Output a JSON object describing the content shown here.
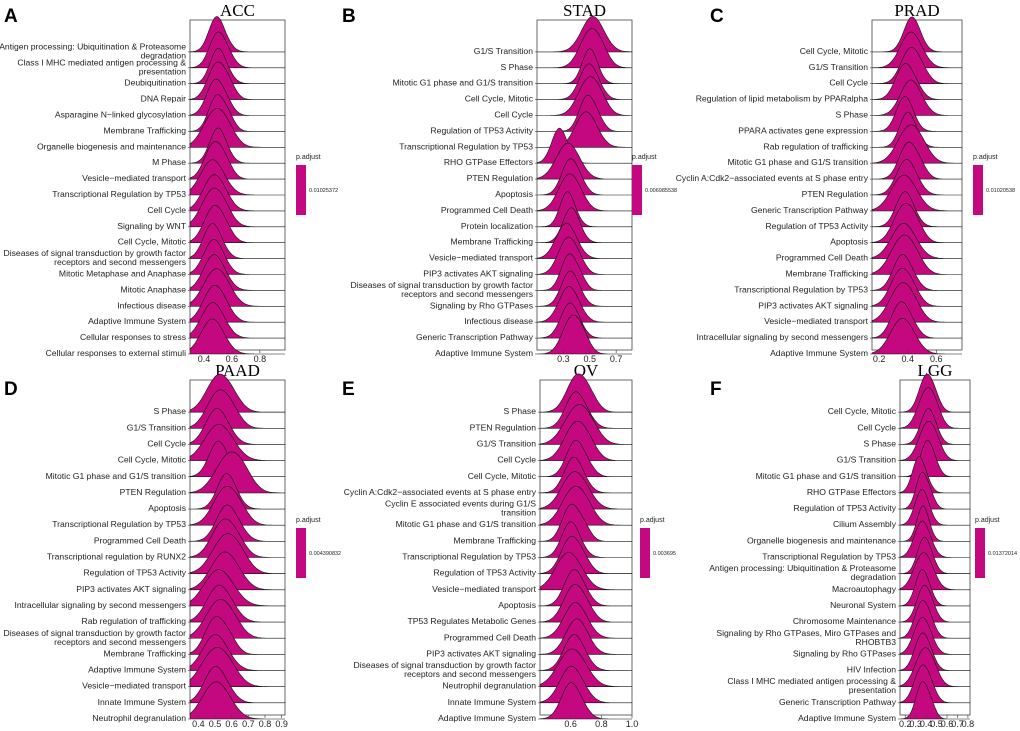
{
  "figure": {
    "fill_color": "#C4087F",
    "panels": [
      {
        "letter": "A",
        "title": "ACC",
        "legend": {
          "title": "p.adjust",
          "value": "0.01025372"
        },
        "chart_data": {
          "type": "ridgeline",
          "title": "ACC",
          "xlim": [
            0.3,
            0.98
          ],
          "xticks": [
            "0.4",
            "0.6",
            "0.8"
          ],
          "xtick_values": [
            0.4,
            0.6,
            0.8
          ],
          "labels": [
            "Antigen processing: Ubiquitination & Proteasome degradation",
            "Class I MHC mediated antigen processing & presentation",
            "Deubiquitination",
            "DNA Repair",
            "Asparagine N−linked glycosylation",
            "Membrane Trafficking",
            "Organelle biogenesis and maintenance",
            "M Phase",
            "Vesicle−mediated transport",
            "Transcriptional Regulation by TP53",
            "Cell Cycle",
            "Signaling by WNT",
            "Cell Cycle, Mitotic",
            "Diseases of signal transduction by growth factor receptors and second messengers",
            "Mitotic Metaphase and Anaphase",
            "Mitotic Anaphase",
            "Infectious disease",
            "Adaptive Immune System",
            "Cellular responses to stress",
            "Cellular responses to external stimuli"
          ],
          "peaks": [
            0.49,
            0.5,
            0.5,
            0.49,
            0.48,
            0.49,
            0.48,
            0.5,
            0.47,
            0.46,
            0.47,
            0.46,
            0.47,
            0.46,
            0.47,
            0.47,
            0.48,
            0.47,
            0.46,
            0.46
          ]
        }
      },
      {
        "letter": "B",
        "title": "STAD",
        "legend": {
          "title": "p.adjust",
          "value": "0.006985538"
        },
        "chart_data": {
          "type": "ridgeline",
          "title": "STAD",
          "xlim": [
            0.1,
            0.82
          ],
          "xticks": [
            "0.3",
            "0.5",
            "0.7"
          ],
          "xtick_values": [
            0.3,
            0.5,
            0.7
          ],
          "labels": [
            "G1/S Transition",
            "S Phase",
            "Mitotic G1 phase and G1/S transition",
            "Cell Cycle, Mitotic",
            "Cell Cycle",
            "Regulation of TP53 Activity",
            "Transcriptional Regulation by TP53",
            "RHO GTPase Effectors",
            "PTEN Regulation",
            "Apoptosis",
            "Programmed Cell Death",
            "Protein localization",
            "Membrane Trafficking",
            "Vesicle−mediated transport",
            "PIP3 activates AKT signaling",
            "Diseases of signal transduction by growth factor receptors and second messengers",
            "Signaling by Rho GTPases",
            "Infectious disease",
            "Generic Transcription Pathway",
            "Adaptive Immune System"
          ],
          "peaks": [
            0.52,
            0.5,
            0.5,
            0.49,
            0.49,
            0.48,
            0.47,
            0.27,
            0.33,
            0.35,
            0.34,
            0.33,
            0.36,
            0.32,
            0.33,
            0.34,
            0.35,
            0.34,
            0.35,
            0.36
          ]
        }
      },
      {
        "letter": "C",
        "title": "PRAD",
        "legend": {
          "title": "p.adjust",
          "value": "0.01020538"
        },
        "chart_data": {
          "type": "ridgeline",
          "title": "PRAD",
          "xlim": [
            0.15,
            0.78
          ],
          "xticks": [
            "0.2",
            "0.4",
            "0.6"
          ],
          "xtick_values": [
            0.2,
            0.4,
            0.6
          ],
          "labels": [
            "Cell Cycle, Mitotic",
            "G1/S Transition",
            "Cell Cycle",
            "Regulation of lipid metabolism by PPARalpha",
            "S Phase",
            "PPARA activates gene expression",
            "Rab regulation of trafficking",
            "Mitotic G1 phase and G1/S transition",
            "Cyclin A:Cdk2−associated events at S phase entry",
            "PTEN Regulation",
            "Generic Transcription Pathway",
            "Regulation of TP53 Activity",
            "Apoptosis",
            "Programmed Cell Death",
            "Membrane Trafficking",
            "Transcriptional Regulation by TP53",
            "PIP3 activates AKT signaling",
            "Vesicle−mediated transport",
            "Intracellular signaling by second messengers",
            "Adaptive Immune System"
          ],
          "peaks": [
            0.43,
            0.42,
            0.42,
            0.38,
            0.42,
            0.38,
            0.4,
            0.41,
            0.4,
            0.39,
            0.37,
            0.38,
            0.37,
            0.37,
            0.36,
            0.36,
            0.35,
            0.35,
            0.35,
            0.36
          ]
        }
      },
      {
        "letter": "D",
        "title": "PAAD",
        "legend": {
          "title": "p.adjust",
          "value": "0.004390832"
        },
        "chart_data": {
          "type": "ridgeline",
          "title": "PAAD",
          "xlim": [
            0.35,
            0.92
          ],
          "xticks": [
            "0.4",
            "0.5",
            "0.6",
            "0.7",
            "0.8",
            "0.9"
          ],
          "xtick_values": [
            0.4,
            0.5,
            0.6,
            0.7,
            0.8,
            0.9
          ],
          "labels": [
            "S Phase",
            "G1/S Transition",
            "Cell Cycle",
            "Cell Cycle, Mitotic",
            "Mitotic G1 phase and G1/S transition",
            "PTEN Regulation",
            "Apoptosis",
            "Transcriptional Regulation by TP53",
            "Programmed Cell Death",
            "Transcriptional regulation by RUNX2",
            "Regulation of TP53 Activity",
            "PIP3 activates AKT signaling",
            "Intracellular signaling by second messengers",
            "Rab regulation of trafficking",
            "Diseases of signal transduction by growth factor receptors and second messengers",
            "Membrane Trafficking",
            "Adaptive Immune System",
            "Vesicle−mediated transport",
            "Innate Immune System",
            "Neutrophil degranulation"
          ],
          "peaks": [
            0.52,
            0.52,
            0.51,
            0.52,
            0.52,
            0.58,
            0.57,
            0.56,
            0.57,
            0.55,
            0.56,
            0.55,
            0.52,
            0.52,
            0.52,
            0.5,
            0.5,
            0.5,
            0.5,
            0.5
          ]
        }
      },
      {
        "letter": "E",
        "title": "OV",
        "legend": {
          "title": "p.adjust",
          "value": "0.003695"
        },
        "chart_data": {
          "type": "ridgeline",
          "title": "OV",
          "xlim": [
            0.4,
            1.0
          ],
          "xticks": [
            "0.6",
            "0.8",
            "1.0"
          ],
          "xtick_values": [
            0.6,
            0.8,
            1.0
          ],
          "labels": [
            "S Phase",
            "PTEN Regulation",
            "G1/S Transition",
            "Cell Cycle",
            "Cell Cycle, Mitotic",
            "Cyclin A:Cdk2−associated events at S phase entry",
            "Cyclin E associated events during G1/S transition",
            "Mitotic G1 phase and G1/S transition",
            "Membrane Trafficking",
            "Transcriptional Regulation by TP53",
            "Regulation of TP53 Activity",
            "Vesicle−mediated transport",
            "Apoptosis",
            "TP53 Regulates Metabolic Genes",
            "Programmed Cell Death",
            "PIP3 activates AKT signaling",
            "Diseases of signal transduction by growth factor receptors and second messengers",
            "Neutrophil degranulation",
            "Innate Immune System",
            "Adaptive Immune System"
          ],
          "peaks": [
            0.64,
            0.63,
            0.64,
            0.63,
            0.63,
            0.62,
            0.62,
            0.62,
            0.6,
            0.6,
            0.6,
            0.58,
            0.62,
            0.62,
            0.63,
            0.64,
            0.62,
            0.6,
            0.6,
            0.6
          ]
        }
      },
      {
        "letter": "F",
        "title": "LGG",
        "legend": {
          "title": "p.adjust",
          "value": "0.01372014"
        },
        "chart_data": {
          "type": "ridgeline",
          "title": "LGG",
          "xlim": [
            0.15,
            0.82
          ],
          "xticks": [
            "0.2",
            "0.3",
            "0.4",
            "0.5",
            "0.6",
            "0.7",
            "0.8"
          ],
          "xtick_values": [
            0.2,
            0.3,
            0.4,
            0.5,
            0.6,
            0.7,
            0.8
          ],
          "labels": [
            "Cell Cycle, Mitotic",
            "Cell Cycle",
            "S Phase",
            "G1/S Transition",
            "Mitotic G1 phase and G1/S transition",
            "RHO GTPase Effectors",
            "Regulation of TP53 Activity",
            "Cilium Assembly",
            "Organelle biogenesis and maintenance",
            "Transcriptional Regulation by TP53",
            "Antigen processing: Ubiquitination & Proteasome degradation",
            "Macroautophagy",
            "Neuronal System",
            "Chromosome Maintenance",
            "Signaling by Rho GTPases, Miro GTPases and RHOBTB3",
            "Signaling by Rho GTPases",
            "HIV Infection",
            "Class I MHC mediated antigen processing & presentation",
            "Generic Transcription Pathway",
            "Adaptive Immune System"
          ],
          "peaks": [
            0.4,
            0.4,
            0.42,
            0.41,
            0.41,
            0.33,
            0.36,
            0.36,
            0.37,
            0.36,
            0.38,
            0.37,
            0.36,
            0.38,
            0.36,
            0.36,
            0.36,
            0.38,
            0.36,
            0.36
          ]
        }
      }
    ]
  }
}
